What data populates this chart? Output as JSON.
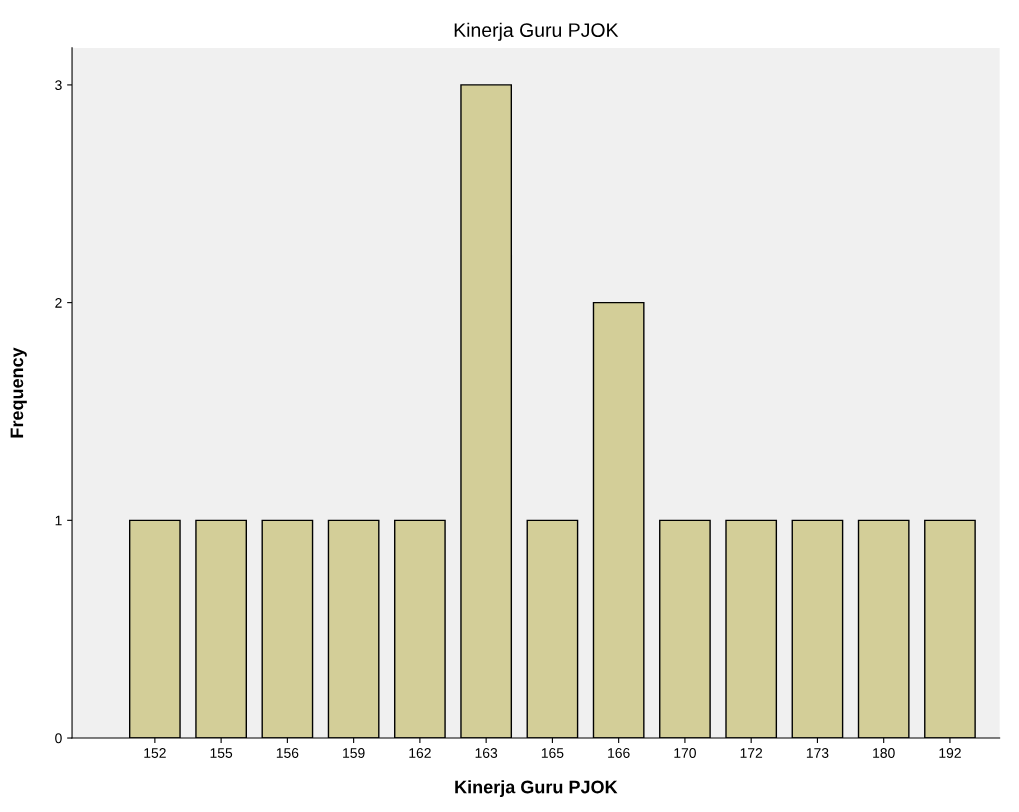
{
  "chart_data": {
    "type": "bar",
    "title": "Kinerja Guru PJOK",
    "xlabel": "Kinerja Guru PJOK",
    "ylabel": "Frequency",
    "categories": [
      "152",
      "155",
      "156",
      "159",
      "162",
      "163",
      "165",
      "166",
      "170",
      "172",
      "173",
      "180",
      "192"
    ],
    "values": [
      1,
      1,
      1,
      1,
      1,
      3,
      1,
      2,
      1,
      1,
      1,
      1,
      1
    ],
    "color": "#d3ce98",
    "ylim": [
      0,
      3.17
    ],
    "yticks": [
      0,
      1,
      2,
      3
    ],
    "grid": false,
    "legend": false
  }
}
